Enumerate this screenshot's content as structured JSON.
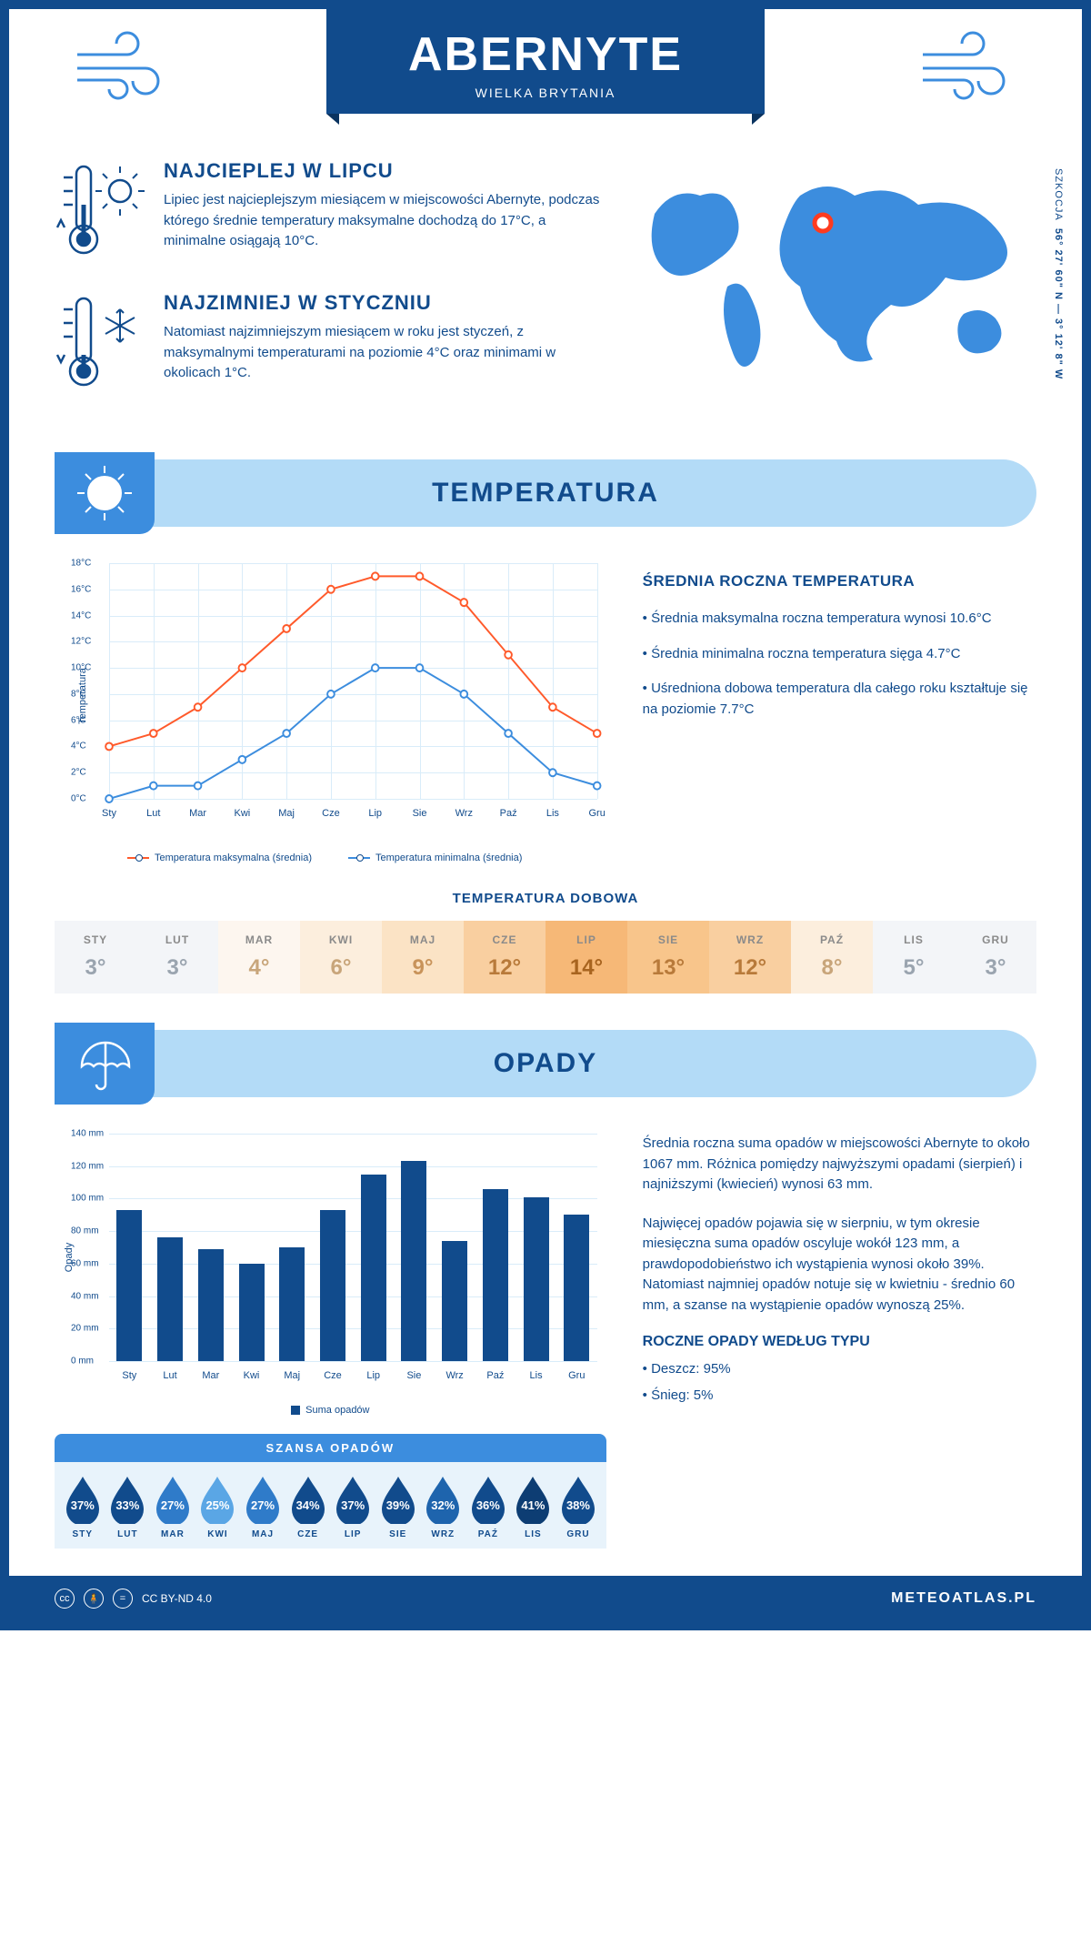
{
  "header": {
    "title": "ABERNYTE",
    "subtitle": "WIELKA BRYTANIA"
  },
  "coords": {
    "lat": "56° 27' 60\" N — 3° 12' 8\" W",
    "region": "SZKOCJA"
  },
  "intro": {
    "warm": {
      "title": "NAJCIEPLEJ W LIPCU",
      "text": "Lipiec jest najcieplejszym miesiącem w miejscowości Abernyte, podczas którego średnie temperatury maksymalne dochodzą do 17°C, a minimalne osiągają 10°C."
    },
    "cold": {
      "title": "NAJZIMNIEJ W STYCZNIU",
      "text": "Natomiast najzimniejszym miesiącem w roku jest styczeń, z maksymalnymi temperaturami na poziomie 4°C oraz minimami w okolicach 1°C."
    }
  },
  "sections": {
    "temp": "TEMPERATURA",
    "precip": "OPADY"
  },
  "temp_chart": {
    "type": "line",
    "y_label": "Temperatura",
    "y_min": 0,
    "y_max": 18,
    "y_step": 2,
    "y_unit": "°C",
    "months": [
      "Sty",
      "Lut",
      "Mar",
      "Kwi",
      "Maj",
      "Cze",
      "Lip",
      "Sie",
      "Wrz",
      "Paź",
      "Lis",
      "Gru"
    ],
    "series": [
      {
        "name": "Temperatura maksymalna (średnia)",
        "color": "#ff5a2b",
        "values": [
          4,
          5,
          7,
          10,
          13,
          16,
          17,
          17,
          15,
          11,
          7,
          5
        ]
      },
      {
        "name": "Temperatura minimalna (średnia)",
        "color": "#3c8dde",
        "values": [
          0,
          1,
          1,
          3,
          5,
          8,
          10,
          10,
          8,
          5,
          2,
          1
        ]
      }
    ],
    "grid_color": "#d9ecf9",
    "background": "#ffffff"
  },
  "temp_info": {
    "title": "ŚREDNIA ROCZNA TEMPERATURA",
    "bullets": [
      "• Średnia maksymalna roczna temperatura wynosi 10.6°C",
      "• Średnia minimalna roczna temperatura sięga 4.7°C",
      "• Uśredniona dobowa temperatura dla całego roku kształtuje się na poziomie 7.7°C"
    ]
  },
  "daily": {
    "title": "TEMPERATURA DOBOWA",
    "months": [
      "STY",
      "LUT",
      "MAR",
      "KWI",
      "MAJ",
      "CZE",
      "LIP",
      "SIE",
      "WRZ",
      "PAŹ",
      "LIS",
      "GRU"
    ],
    "values": [
      "3°",
      "3°",
      "4°",
      "6°",
      "9°",
      "12°",
      "14°",
      "13°",
      "12°",
      "8°",
      "5°",
      "3°"
    ],
    "bg_colors": [
      "#f3f5f8",
      "#f3f5f8",
      "#fdf6ef",
      "#fceedd",
      "#fbe3c5",
      "#f9cfa0",
      "#f6b877",
      "#f8c58b",
      "#f9cfa0",
      "#fceedd",
      "#f3f5f8",
      "#f3f5f8"
    ],
    "text_colors": [
      "#9aa4af",
      "#9aa4af",
      "#c8a57a",
      "#c8a57a",
      "#c8935a",
      "#b87a3a",
      "#a8641f",
      "#b87a3a",
      "#b87a3a",
      "#c8a57a",
      "#9aa4af",
      "#9aa4af"
    ]
  },
  "precip_chart": {
    "type": "bar",
    "y_label": "Opady",
    "y_min": 0,
    "y_max": 140,
    "y_step": 20,
    "y_unit": " mm",
    "months": [
      "Sty",
      "Lut",
      "Mar",
      "Kwi",
      "Maj",
      "Cze",
      "Lip",
      "Sie",
      "Wrz",
      "Paź",
      "Lis",
      "Gru"
    ],
    "values": [
      93,
      76,
      69,
      60,
      70,
      93,
      115,
      123,
      74,
      106,
      101,
      90
    ],
    "bar_color": "#114b8c",
    "grid_color": "#d9ecf9",
    "legend": "Suma opadów"
  },
  "precip_info": {
    "p1": "Średnia roczna suma opadów w miejscowości Abernyte to około 1067 mm. Różnica pomiędzy najwyższymi opadami (sierpień) i najniższymi (kwiecień) wynosi 63 mm.",
    "p2": "Najwięcej opadów pojawia się w sierpniu, w tym okresie miesięczna suma opadów oscyluje wokół 123 mm, a prawdopodobieństwo ich wystąpienia wynosi około 39%. Natomiast najmniej opadów notuje się w kwietniu - średnio 60 mm, a szanse na wystąpienie opadów wynoszą 25%.",
    "types_title": "ROCZNE OPADY WEDŁUG TYPU",
    "types": [
      "• Deszcz: 95%",
      "• Śnieg: 5%"
    ]
  },
  "chance": {
    "title": "SZANSA OPADÓW",
    "months": [
      "STY",
      "LUT",
      "MAR",
      "KWI",
      "MAJ",
      "CZE",
      "LIP",
      "SIE",
      "WRZ",
      "PAŹ",
      "LIS",
      "GRU"
    ],
    "values": [
      "37%",
      "33%",
      "27%",
      "25%",
      "27%",
      "34%",
      "37%",
      "39%",
      "32%",
      "36%",
      "41%",
      "38%"
    ],
    "colors": [
      "#114b8c",
      "#114b8c",
      "#2f7bc9",
      "#5aa6e5",
      "#2f7bc9",
      "#114b8c",
      "#114b8c",
      "#114b8c",
      "#1e64ad",
      "#114b8c",
      "#0d3d73",
      "#114b8c"
    ]
  },
  "footer": {
    "license": "CC BY-ND 4.0",
    "site": "METEOATLAS.PL"
  },
  "colors": {
    "primary": "#114b8c",
    "accent": "#3c8dde",
    "light": "#b3dbf7"
  }
}
